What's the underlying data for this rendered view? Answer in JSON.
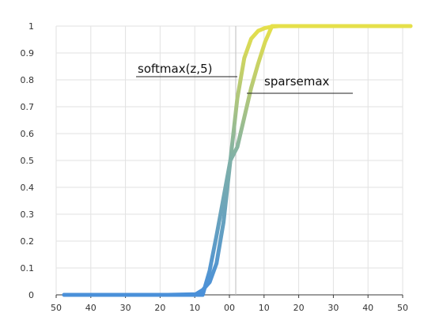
{
  "chart_data": {
    "type": "line",
    "title": "",
    "xlabel": "",
    "ylabel": "",
    "x_tick_labels": [
      "50",
      "40",
      "30",
      "20",
      "10",
      "00",
      "10",
      "20",
      "30",
      "40",
      "50"
    ],
    "y_tick_labels": [
      "0",
      "0.1",
      "0.2",
      "0.3",
      "0.4",
      "0.5",
      "0.6",
      "0.7",
      "0.8",
      "0.9",
      "1"
    ],
    "xlim": [
      -50,
      50
    ],
    "ylim": [
      0,
      1
    ],
    "grid": true,
    "annotations": [
      "softmax(z,5)",
      "sparsemax"
    ],
    "color_scale": [
      "#4a90d9",
      "#7fb0a8",
      "#e6e04a"
    ],
    "series": [
      {
        "name": "softmax(z,5)",
        "x": [
          -50,
          -20,
          -12,
          -10,
          -8,
          -6,
          -4,
          -2,
          0,
          2,
          4,
          6,
          8,
          10,
          12,
          20,
          50
        ],
        "y": [
          0,
          0,
          0.002,
          0.018,
          0.047,
          0.117,
          0.269,
          0.5,
          0.731,
          0.881,
          0.953,
          0.982,
          0.993,
          0.998,
          1,
          1,
          1
        ]
      },
      {
        "name": "sparsemax",
        "x": [
          -50,
          -20,
          -10,
          -8,
          -6,
          -4,
          -2,
          0,
          2,
          4,
          6,
          8,
          10,
          20,
          50
        ],
        "y": [
          0,
          0,
          0,
          0.09,
          0.22,
          0.36,
          0.5,
          0.55,
          0.66,
          0.77,
          0.86,
          0.94,
          1,
          1,
          1
        ]
      }
    ]
  }
}
